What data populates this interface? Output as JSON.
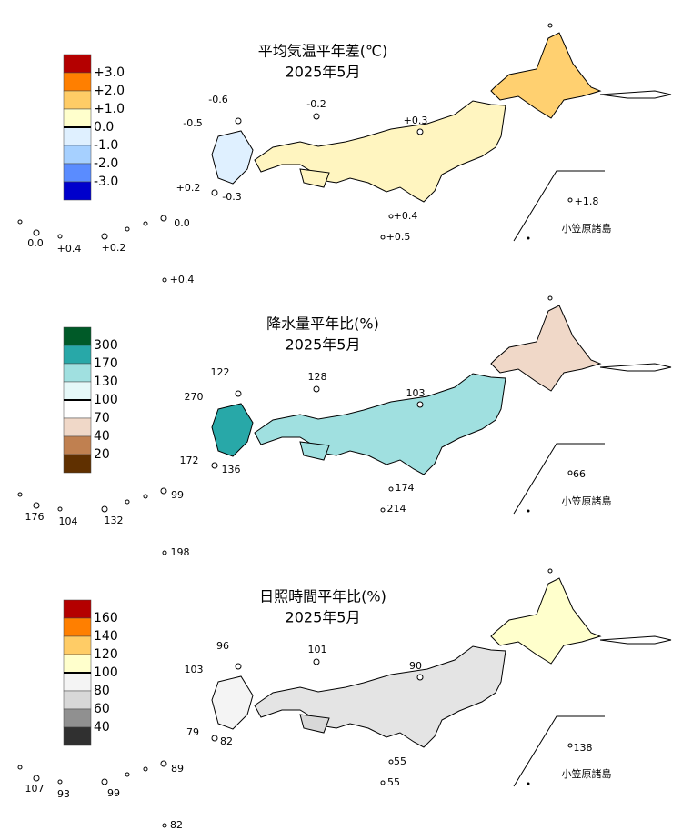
{
  "panels": [
    {
      "title": "平均気温平年差(℃)",
      "subtitle": "2025年5月",
      "legend": {
        "labels": [
          "+3.0",
          "+2.0",
          "+1.0",
          "0.0",
          "-1.0",
          "-2.0",
          "-3.0"
        ],
        "colors": [
          "#b40000",
          "#ff7f00",
          "#ffcc66",
          "#ffffcc",
          "#dff0ff",
          "#a6d0ff",
          "#5a8cff",
          "#0000cc"
        ]
      },
      "map_colors": {
        "honshu": "#fff5c0",
        "hokkaido": "#ffd070",
        "kyushu": "#dff0ff",
        "shikoku": "#fff5c0"
      },
      "labels": [
        "-0.6",
        "-0.2",
        "-0.5",
        "+0.3",
        "+0.2",
        "-0.3",
        "0.0",
        "+1.8",
        "+0.4",
        "0.0",
        "+0.4",
        "+0.2",
        "+0.5",
        "+0.4",
        "小笠原諸島"
      ]
    },
    {
      "title": "降水量平年比(%)",
      "subtitle": "2025年5月",
      "legend": {
        "labels": [
          "300",
          "170",
          "130",
          "100",
          "70",
          "40",
          "20"
        ],
        "colors": [
          "#005a28",
          "#28a8a8",
          "#a0e0e0",
          "#e6f8f8",
          "#ffffff",
          "#f0d8c8",
          "#c08050",
          "#603000"
        ]
      },
      "map_colors": {
        "honshu": "#a0e0e0",
        "hokkaido": "#f0d8c8",
        "kyushu": "#28a8a8",
        "shikoku": "#a0e0e0"
      },
      "labels": [
        "122",
        "128",
        "270",
        "103",
        "172",
        "136",
        "99",
        "66",
        "174",
        "176",
        "104",
        "132",
        "214",
        "198",
        "小笠原諸島"
      ]
    },
    {
      "title": "日照時間平年比(%)",
      "subtitle": "2025年5月",
      "legend": {
        "labels": [
          "160",
          "140",
          "120",
          "100",
          "80",
          "60",
          "40"
        ],
        "colors": [
          "#b40000",
          "#ff7f00",
          "#ffcc66",
          "#ffffcc",
          "#f4f4f4",
          "#d8d8d8",
          "#909090",
          "#303030"
        ]
      },
      "map_colors": {
        "honshu": "#e4e4e4",
        "hokkaido": "#ffffcc",
        "kyushu": "#f4f4f4",
        "shikoku": "#d8d8d8"
      },
      "labels": [
        "96",
        "101",
        "103",
        "90",
        "79",
        "82",
        "89",
        "138",
        "55",
        "107",
        "93",
        "99",
        "55",
        "82",
        "小笠原諸島"
      ]
    }
  ]
}
